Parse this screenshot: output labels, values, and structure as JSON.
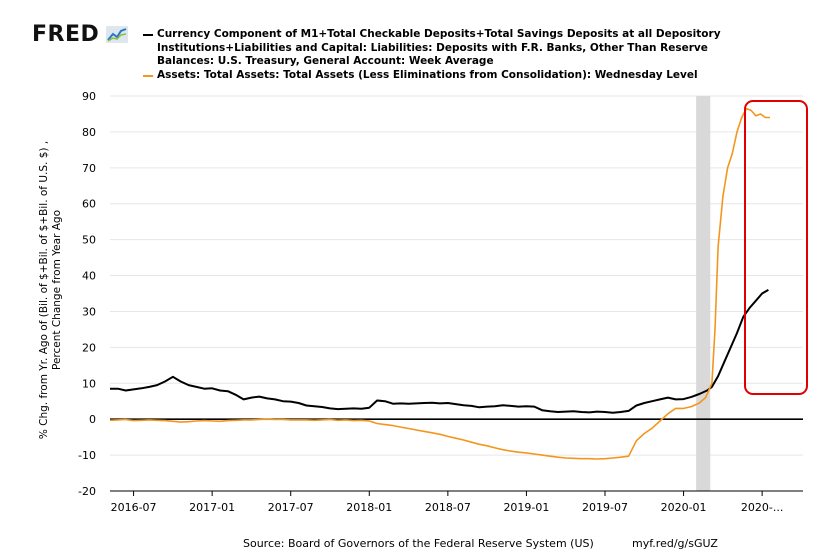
{
  "header": {
    "logo_text": "FRED",
    "logo_icon": "line-chart-icon",
    "source_text": "Source: Board of Governors of the Federal Reserve System (US)",
    "shortlink": "myf.red/g/sGUZ"
  },
  "legend": {
    "series1_label": "Currency Component of M1+Total Checkable Deposits+Total Savings Deposits at all Depository Institutions+Liabilities and Capital: Liabilities: Deposits with F.R. Banks, Other Than Reserve Balances: U.S. Treasury, General Account: Week Average",
    "series2_label": "Assets: Total Assets: Total Assets (Less Eliminations from Consolidation): Wednesday Level"
  },
  "colors": {
    "series1": "#000000",
    "series2": "#f4961e",
    "recession": "#d9d9d9",
    "highlight": "#e00000",
    "grid": "#e6e6e6"
  },
  "chart_data": {
    "type": "line",
    "title": "",
    "xlabel": "",
    "ylabel_line1": "% Chg. from Yr. Ago of (Bil. of $+Bil. of $+Bil. of U.S. $) ,",
    "ylabel_line2": "Percent Change from Year Ago",
    "ylim": [
      -20,
      90
    ],
    "yticks": [
      -20,
      -10,
      0,
      10,
      20,
      30,
      40,
      50,
      60,
      70,
      80,
      90
    ],
    "xlim": [
      2016.35,
      2020.76
    ],
    "xticks": [
      {
        "label": "2016-07",
        "x": 2016.5
      },
      {
        "label": "2017-01",
        "x": 2017.0
      },
      {
        "label": "2017-07",
        "x": 2017.5
      },
      {
        "label": "2018-01",
        "x": 2018.0
      },
      {
        "label": "2018-07",
        "x": 2018.5
      },
      {
        "label": "2019-01",
        "x": 2019.0
      },
      {
        "label": "2019-07",
        "x": 2019.5
      },
      {
        "label": "2020-01",
        "x": 2020.0
      },
      {
        "label": "2020-...",
        "x": 2020.5
      }
    ],
    "recession": [
      2020.08,
      2020.17
    ],
    "series": [
      {
        "name": "Currency Component of M1+Total Checkable Deposits+Total Savings Deposits+Deposits with F.R. Banks, U.S. Treasury General Account",
        "color": "#000000",
        "x": [
          2016.35,
          2016.4,
          2016.45,
          2016.5,
          2016.55,
          2016.6,
          2016.65,
          2016.7,
          2016.75,
          2016.8,
          2016.85,
          2016.9,
          2016.95,
          2017.0,
          2017.05,
          2017.1,
          2017.15,
          2017.2,
          2017.25,
          2017.3,
          2017.35,
          2017.4,
          2017.45,
          2017.5,
          2017.55,
          2017.6,
          2017.65,
          2017.7,
          2017.75,
          2017.8,
          2017.85,
          2017.9,
          2017.95,
          2018.0,
          2018.05,
          2018.1,
          2018.15,
          2018.2,
          2018.25,
          2018.3,
          2018.35,
          2018.4,
          2018.45,
          2018.5,
          2018.55,
          2018.6,
          2018.65,
          2018.7,
          2018.75,
          2018.8,
          2018.85,
          2018.9,
          2018.95,
          2019.0,
          2019.05,
          2019.1,
          2019.15,
          2019.2,
          2019.25,
          2019.3,
          2019.35,
          2019.4,
          2019.45,
          2019.5,
          2019.55,
          2019.6,
          2019.65,
          2019.7,
          2019.75,
          2019.8,
          2019.85,
          2019.9,
          2019.95,
          2020.0,
          2020.05,
          2020.1,
          2020.15,
          2020.18,
          2020.22,
          2020.26,
          2020.3,
          2020.34,
          2020.38,
          2020.42,
          2020.46,
          2020.5,
          2020.54
        ],
        "values": [
          8.5,
          8.5,
          8.0,
          8.3,
          8.6,
          9.0,
          9.5,
          10.5,
          11.8,
          10.5,
          9.5,
          9.0,
          8.5,
          8.6,
          8.0,
          7.8,
          6.8,
          5.5,
          6.0,
          6.3,
          5.8,
          5.5,
          5.0,
          4.9,
          4.5,
          3.8,
          3.6,
          3.4,
          3.0,
          2.8,
          2.9,
          3.0,
          2.9,
          3.2,
          5.2,
          5.0,
          4.3,
          4.4,
          4.3,
          4.4,
          4.5,
          4.6,
          4.4,
          4.5,
          4.2,
          3.9,
          3.7,
          3.3,
          3.5,
          3.6,
          3.9,
          3.7,
          3.5,
          3.6,
          3.5,
          2.5,
          2.2,
          2.0,
          2.1,
          2.2,
          2.0,
          1.9,
          2.1,
          2.0,
          1.8,
          2.0,
          2.3,
          3.8,
          4.5,
          5.0,
          5.5,
          6.0,
          5.5,
          5.6,
          6.2,
          7.0,
          8.0,
          9.0,
          12.0,
          16.0,
          20.0,
          24.0,
          28.5,
          31.0,
          33.0,
          35.0,
          36.0
        ]
      },
      {
        "name": "Assets: Total Assets: Total Assets (Less Eliminations from Consolidation): Wednesday Level",
        "color": "#f4961e",
        "x": [
          2016.35,
          2016.4,
          2016.45,
          2016.5,
          2016.55,
          2016.6,
          2016.65,
          2016.7,
          2016.75,
          2016.8,
          2016.85,
          2016.9,
          2016.95,
          2017.0,
          2017.05,
          2017.1,
          2017.15,
          2017.2,
          2017.25,
          2017.3,
          2017.35,
          2017.4,
          2017.45,
          2017.5,
          2017.55,
          2017.6,
          2017.65,
          2017.7,
          2017.75,
          2017.8,
          2017.85,
          2017.9,
          2017.95,
          2018.0,
          2018.05,
          2018.1,
          2018.15,
          2018.2,
          2018.25,
          2018.3,
          2018.35,
          2018.4,
          2018.45,
          2018.5,
          2018.55,
          2018.6,
          2018.65,
          2018.7,
          2018.75,
          2018.8,
          2018.85,
          2018.9,
          2018.95,
          2019.0,
          2019.05,
          2019.1,
          2019.15,
          2019.2,
          2019.25,
          2019.3,
          2019.35,
          2019.4,
          2019.45,
          2019.5,
          2019.55,
          2019.6,
          2019.65,
          2019.7,
          2019.75,
          2019.8,
          2019.85,
          2019.9,
          2019.95,
          2020.0,
          2020.05,
          2020.1,
          2020.14,
          2020.18,
          2020.2,
          2020.22,
          2020.25,
          2020.28,
          2020.31,
          2020.34,
          2020.37,
          2020.4,
          2020.43,
          2020.46,
          2020.49,
          2020.52,
          2020.55
        ],
        "values": [
          -0.3,
          -0.2,
          -0.1,
          -0.4,
          -0.3,
          -0.2,
          -0.3,
          -0.4,
          -0.6,
          -0.8,
          -0.7,
          -0.5,
          -0.4,
          -0.5,
          -0.6,
          -0.4,
          -0.3,
          -0.2,
          -0.2,
          -0.1,
          0.0,
          -0.1,
          -0.1,
          -0.2,
          -0.2,
          -0.2,
          -0.3,
          -0.2,
          -0.1,
          -0.3,
          -0.2,
          -0.4,
          -0.3,
          -0.5,
          -1.2,
          -1.5,
          -1.8,
          -2.2,
          -2.6,
          -3.0,
          -3.4,
          -3.8,
          -4.2,
          -4.8,
          -5.3,
          -5.8,
          -6.4,
          -7.0,
          -7.4,
          -8.0,
          -8.5,
          -8.9,
          -9.2,
          -9.4,
          -9.7,
          -10.0,
          -10.3,
          -10.6,
          -10.8,
          -10.9,
          -11.0,
          -11.0,
          -11.1,
          -11.0,
          -10.8,
          -10.6,
          -10.3,
          -6.0,
          -4.0,
          -2.5,
          -0.5,
          1.5,
          3.0,
          3.0,
          3.5,
          4.5,
          6.0,
          10.0,
          25.0,
          48.0,
          62.0,
          70.0,
          74.0,
          80.0,
          84.0,
          86.5,
          86.0,
          84.5,
          85.0,
          84.0,
          84.0
        ]
      }
    ]
  }
}
